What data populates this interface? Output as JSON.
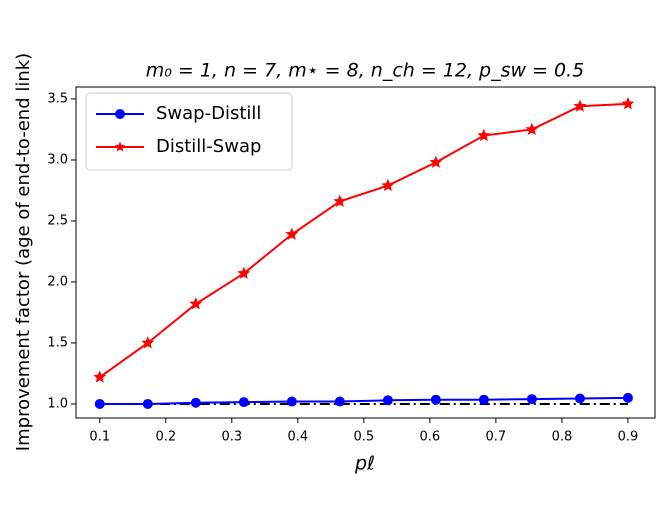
{
  "chart_data": {
    "type": "line",
    "title": "m₀ = 1, n = 7, m⋆ = 8, n_ch = 12, p_sw = 0.5",
    "x_label": "pℓ",
    "y_label": "Improvement factor (age of end-to-end link)",
    "x": [
      0.1,
      0.1727,
      0.2455,
      0.3182,
      0.3909,
      0.4636,
      0.5364,
      0.6091,
      0.6818,
      0.7545,
      0.8273,
      0.9
    ],
    "series": [
      {
        "name": "Swap-Distill",
        "color": "#0000ff",
        "marker": "circle",
        "values": [
          1.0,
          1.0,
          1.01,
          1.015,
          1.02,
          1.02,
          1.03,
          1.035,
          1.035,
          1.04,
          1.045,
          1.05
        ]
      },
      {
        "name": "Distill-Swap",
        "color": "#ff0000",
        "marker": "star",
        "values": [
          1.22,
          1.5,
          1.82,
          2.07,
          2.39,
          2.66,
          2.79,
          2.98,
          3.2,
          3.25,
          3.44,
          3.46
        ]
      }
    ],
    "reference_line": {
      "y": 1,
      "color": "#000000"
    },
    "xlim": [
      0.064,
      0.941
    ],
    "ylim": [
      0.885,
      3.598
    ],
    "xticks": [
      0.1,
      0.2,
      0.3,
      0.4,
      0.5,
      0.6,
      0.7,
      0.8,
      0.9
    ],
    "yticks": [
      {
        "value": 1,
        "label": "1.0"
      },
      1.5,
      {
        "value": 2,
        "label": "2.0"
      },
      2.5,
      {
        "value": 3,
        "label": "3.0"
      },
      3.5
    ],
    "grid": false,
    "legend": "upper-left"
  }
}
